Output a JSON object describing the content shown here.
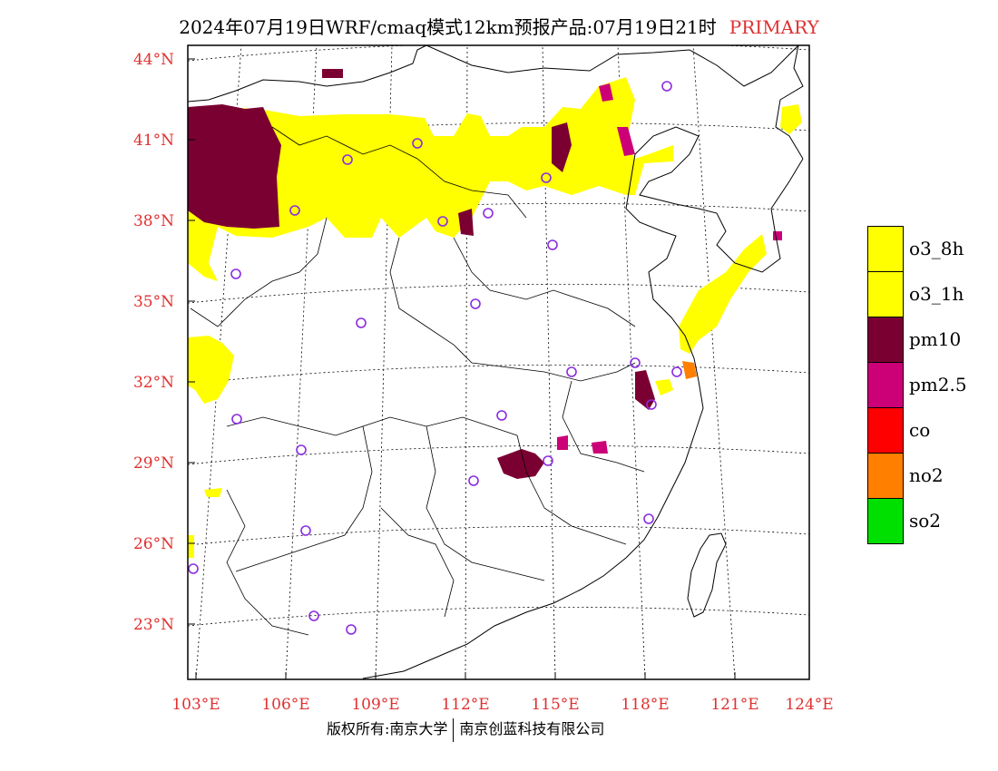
{
  "title": {
    "main": "2024年07月19日WRF/cmaq模式12km预报产品:07月19日21时",
    "tag": "PRIMARY"
  },
  "axes": {
    "lat_labels": [
      "44°N",
      "41°N",
      "38°N",
      "35°N",
      "32°N",
      "29°N",
      "26°N",
      "23°N"
    ],
    "lon_labels": [
      "103°E",
      "106°E",
      "109°E",
      "112°E",
      "115°E",
      "118°E",
      "121°E",
      "124°E"
    ]
  },
  "legend": [
    {
      "label": "o3_8h",
      "color": "#ffff00"
    },
    {
      "label": "o3_1h",
      "color": "#ffff00"
    },
    {
      "label": "pm10",
      "color": "#7b0032"
    },
    {
      "label": "pm2.5",
      "color": "#cc0077"
    },
    {
      "label": "co",
      "color": "#ff0000"
    },
    {
      "label": "no2",
      "color": "#ff7f00"
    },
    {
      "label": "so2",
      "color": "#00e000"
    }
  ],
  "footer": {
    "left": "版权所有:南京大学",
    "right": "南京创蓝科技有限公司"
  },
  "colors": {
    "tick": "#e03030",
    "station": "#8a2be2",
    "o3": "#ffff00",
    "pm10": "#7b0032",
    "pm25": "#cc0077",
    "no2": "#ff7f00"
  }
}
